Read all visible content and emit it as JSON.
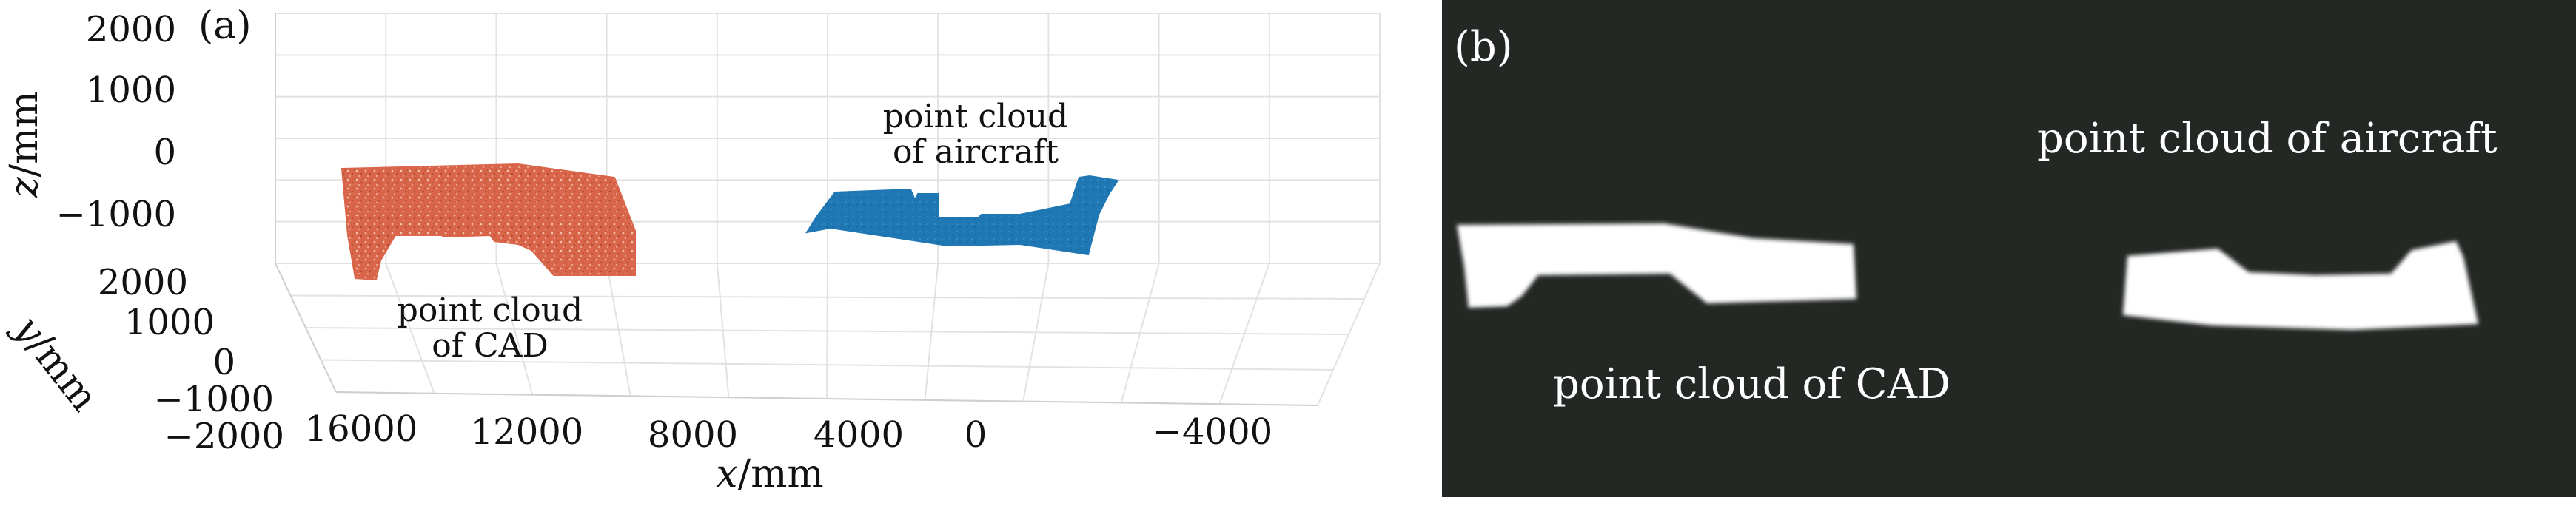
{
  "chart_data": [
    {
      "type": "scatter",
      "panel_label": "(a)",
      "projection": "3d",
      "x_axis": {
        "label": "x",
        "unit": "/mm",
        "ticks": [
          16000,
          12000,
          8000,
          4000,
          0,
          -4000
        ],
        "tick_labels": [
          "16000",
          "12000",
          "8000",
          "4000",
          "0",
          "−4000"
        ]
      },
      "y_axis": {
        "label": "y",
        "unit": "/mm",
        "ticks": [
          2000,
          1000,
          0,
          -1000,
          -2000
        ],
        "tick_labels": [
          "2000",
          "1000",
          "0",
          "−1000",
          "−2000"
        ]
      },
      "z_axis": {
        "label": "z",
        "unit": "/mm",
        "ticks": [
          2000,
          1000,
          0,
          -1000
        ],
        "tick_labels": [
          "2000",
          "1000",
          "0",
          "−1000"
        ]
      },
      "grid": true,
      "series": [
        {
          "label_lines": [
            "point cloud",
            "of CAD"
          ],
          "color": "#d9664a"
        },
        {
          "label_lines": [
            "point cloud",
            "of aircraft"
          ],
          "color": "#1f77b4"
        }
      ]
    },
    {
      "type": "image",
      "panel_label": "(b)",
      "background": "#242824",
      "shapes": [
        {
          "label": "point cloud of CAD",
          "color": "#ffffff"
        },
        {
          "label": "point cloud of aircraft",
          "color": "#ffffff"
        }
      ]
    }
  ]
}
